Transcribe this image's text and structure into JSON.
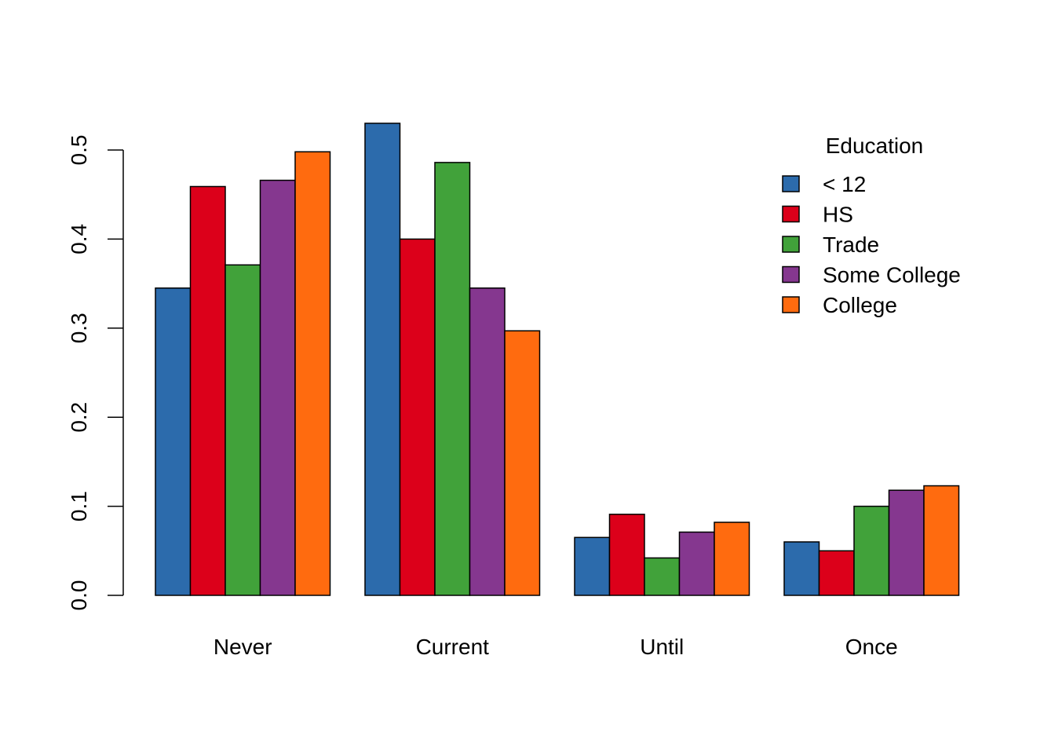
{
  "chart_data": {
    "type": "bar",
    "categories": [
      "Never",
      "Current",
      "Until",
      "Once"
    ],
    "series": [
      {
        "name": "< 12",
        "color": "#2C6BAC",
        "values": [
          0.345,
          0.53,
          0.065,
          0.06
        ]
      },
      {
        "name": "HS",
        "color": "#DC001A",
        "values": [
          0.459,
          0.4,
          0.091,
          0.05
        ]
      },
      {
        "name": "Trade",
        "color": "#41A23A",
        "values": [
          0.371,
          0.486,
          0.042,
          0.1
        ]
      },
      {
        "name": "Some College",
        "color": "#85378F",
        "values": [
          0.466,
          0.345,
          0.071,
          0.118
        ]
      },
      {
        "name": "College",
        "color": "#FF6B0F",
        "values": [
          0.498,
          0.297,
          0.082,
          0.123
        ]
      }
    ],
    "yticks": [
      "0.0",
      "0.1",
      "0.2",
      "0.3",
      "0.4",
      "0.5"
    ],
    "ylim": [
      0,
      0.5
    ],
    "legend": {
      "title": "Education",
      "position": "top-right"
    },
    "grid": false
  }
}
